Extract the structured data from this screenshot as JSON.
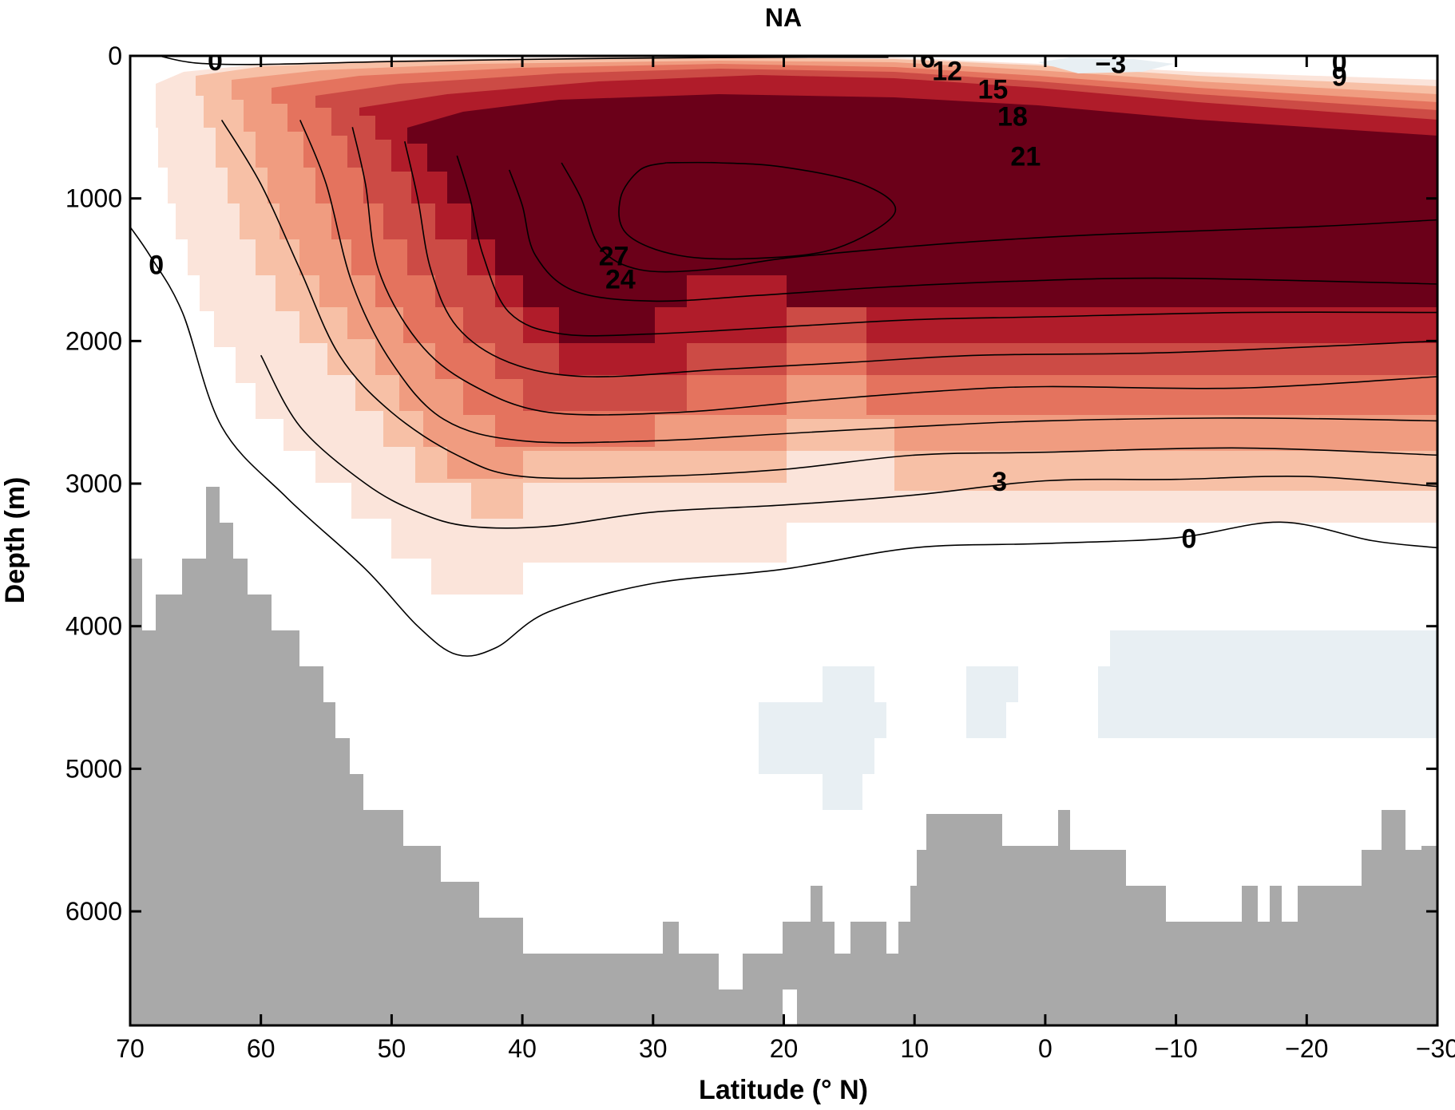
{
  "chart_data": {
    "type": "contour",
    "title": "NA",
    "xlabel": "Latitude (° N)",
    "ylabel": "Depth (m)",
    "xlim": [
      70,
      -30
    ],
    "ylim": [
      0,
      6800
    ],
    "x_ticks": [
      70,
      60,
      50,
      40,
      30,
      20,
      10,
      0,
      -10,
      -20,
      -30
    ],
    "x_tick_labels": [
      "70",
      "60",
      "50",
      "40",
      "30",
      "20",
      "10",
      "0",
      "−10",
      "−20",
      "−30"
    ],
    "y_ticks": [
      0,
      1000,
      2000,
      3000,
      4000,
      5000,
      6000
    ],
    "y_tick_labels": [
      "0",
      "1000",
      "2000",
      "3000",
      "4000",
      "5000",
      "6000"
    ],
    "contour_interval": 3,
    "colors": {
      "negative": "#e8eff3",
      "fill_levels": [
        "#fbe4da",
        "#f7c0a6",
        "#f09c80",
        "#e4735e",
        "#cc4b45",
        "#b01c2a",
        "#6b0019"
      ],
      "bathymetry": "#a9a9a9",
      "contour": "#000000"
    },
    "contour_labels": [
      {
        "text": "0",
        "lat": 63.5,
        "depth": 50
      },
      {
        "text": "0",
        "lat": 68,
        "depth": 1480
      },
      {
        "text": "6",
        "lat": 9,
        "depth": 30
      },
      {
        "text": "12",
        "lat": 7.5,
        "depth": 120
      },
      {
        "text": "15",
        "lat": 4,
        "depth": 250
      },
      {
        "text": "18",
        "lat": 2.5,
        "depth": 440
      },
      {
        "text": "21",
        "lat": 1.5,
        "depth": 720
      },
      {
        "text": "27",
        "lat": 33,
        "depth": 1420
      },
      {
        "text": "24",
        "lat": 32.5,
        "depth": 1580
      },
      {
        "text": "3",
        "lat": 3.5,
        "depth": 3000
      },
      {
        "text": "0",
        "lat": -11,
        "depth": 3400
      },
      {
        "text": "−3",
        "lat": -5,
        "depth": 70
      },
      {
        "text": "0",
        "lat": -22.5,
        "depth": 60
      },
      {
        "text": "9",
        "lat": -22.5,
        "depth": 160
      }
    ],
    "contour_levels": [
      {
        "level": 0,
        "points": [
          [
            67.8,
            0
          ],
          [
            65,
            50
          ],
          [
            60,
            60
          ],
          [
            50,
            40
          ],
          [
            40,
            25
          ],
          [
            30,
            15
          ],
          [
            20,
            10
          ],
          [
            12,
            10
          ]
        ]
      },
      {
        "level": 0,
        "points": [
          [
            70,
            1200
          ],
          [
            68.5,
            1400
          ],
          [
            66,
            1800
          ],
          [
            63,
            2600
          ],
          [
            58,
            3100
          ],
          [
            52,
            3600
          ],
          [
            48,
            4000
          ],
          [
            45,
            4200
          ],
          [
            42,
            4150
          ],
          [
            38,
            3900
          ],
          [
            30,
            3700
          ],
          [
            20,
            3600
          ],
          [
            10,
            3450
          ],
          [
            0,
            3420
          ],
          [
            -10,
            3380
          ],
          [
            -18,
            3270
          ],
          [
            -25,
            3400
          ],
          [
            -30,
            3450
          ]
        ]
      },
      {
        "level": 3,
        "points": [
          [
            60,
            2100
          ],
          [
            57,
            2600
          ],
          [
            52,
            3000
          ],
          [
            48,
            3200
          ],
          [
            44,
            3300
          ],
          [
            38,
            3300
          ],
          [
            30,
            3200
          ],
          [
            20,
            3150
          ],
          [
            10,
            3080
          ],
          [
            0,
            2980
          ],
          [
            -10,
            2970
          ],
          [
            -20,
            2950
          ],
          [
            -30,
            3020
          ]
        ]
      },
      {
        "level": 6,
        "points": [
          [
            63,
            450
          ],
          [
            60,
            900
          ],
          [
            57,
            1500
          ],
          [
            54,
            2100
          ],
          [
            50,
            2500
          ],
          [
            45,
            2800
          ],
          [
            40,
            2950
          ],
          [
            30,
            2950
          ],
          [
            20,
            2900
          ],
          [
            10,
            2800
          ],
          [
            0,
            2780
          ],
          [
            -15,
            2750
          ],
          [
            -30,
            2800
          ]
        ]
      },
      {
        "level": 9,
        "points": [
          [
            57,
            450
          ],
          [
            55,
            900
          ],
          [
            53,
            1600
          ],
          [
            50,
            2150
          ],
          [
            46,
            2550
          ],
          [
            40,
            2700
          ],
          [
            30,
            2700
          ],
          [
            20,
            2650
          ],
          [
            10,
            2600
          ],
          [
            0,
            2560
          ],
          [
            -15,
            2540
          ],
          [
            -30,
            2560
          ]
        ]
      },
      {
        "level": 12,
        "points": [
          [
            53,
            500
          ],
          [
            52,
            900
          ],
          [
            51,
            1500
          ],
          [
            48,
            2000
          ],
          [
            44,
            2300
          ],
          [
            38,
            2500
          ],
          [
            28,
            2500
          ],
          [
            18,
            2420
          ],
          [
            8,
            2350
          ],
          [
            0,
            2320
          ],
          [
            -15,
            2330
          ],
          [
            -30,
            2250
          ]
        ]
      },
      {
        "level": 15,
        "points": [
          [
            49,
            600
          ],
          [
            48,
            1000
          ],
          [
            47,
            1500
          ],
          [
            45,
            1900
          ],
          [
            41,
            2150
          ],
          [
            35,
            2250
          ],
          [
            25,
            2200
          ],
          [
            15,
            2150
          ],
          [
            5,
            2100
          ],
          [
            -10,
            2080
          ],
          [
            -30,
            2000
          ]
        ]
      },
      {
        "level": 18,
        "points": [
          [
            45,
            700
          ],
          [
            44,
            1000
          ],
          [
            43,
            1400
          ],
          [
            41,
            1800
          ],
          [
            37,
            1950
          ],
          [
            30,
            1950
          ],
          [
            20,
            1900
          ],
          [
            10,
            1850
          ],
          [
            0,
            1830
          ],
          [
            -15,
            1800
          ],
          [
            -30,
            1800
          ]
        ]
      },
      {
        "level": 21,
        "points": [
          [
            41,
            800
          ],
          [
            40,
            1050
          ],
          [
            39,
            1400
          ],
          [
            36,
            1650
          ],
          [
            30,
            1720
          ],
          [
            22,
            1680
          ],
          [
            12,
            1620
          ],
          [
            2,
            1580
          ],
          [
            -10,
            1560
          ],
          [
            -30,
            1600
          ]
        ]
      },
      {
        "level": 24,
        "points": [
          [
            37,
            750
          ],
          [
            35.5,
            1000
          ],
          [
            34,
            1350
          ],
          [
            31,
            1500
          ],
          [
            26,
            1500
          ],
          [
            20,
            1420
          ],
          [
            12,
            1350
          ],
          [
            5,
            1300
          ],
          [
            -5,
            1250
          ],
          [
            -20,
            1200
          ],
          [
            -30,
            1150
          ]
        ]
      },
      {
        "level": 27,
        "points": [
          [
            29,
            750
          ],
          [
            31,
            800
          ],
          [
            32.5,
            1000
          ],
          [
            32,
            1250
          ],
          [
            28,
            1400
          ],
          [
            22,
            1420
          ],
          [
            16,
            1350
          ],
          [
            11.5,
            1100
          ],
          [
            14,
            900
          ],
          [
            20,
            780
          ],
          [
            25,
            750
          ],
          [
            29,
            750
          ]
        ]
      }
    ]
  }
}
